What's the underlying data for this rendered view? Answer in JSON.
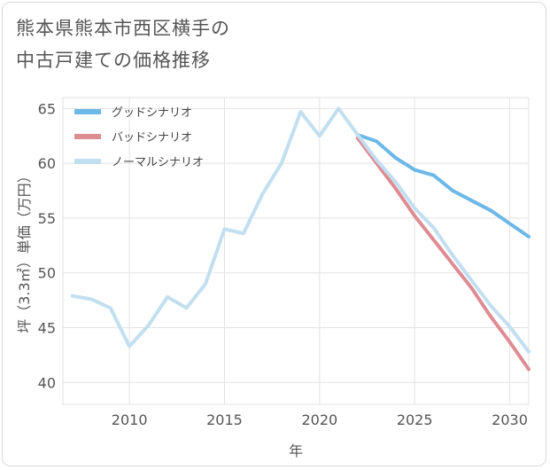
{
  "title": {
    "line1": "熊本県熊本市西区横手の",
    "line2": "中古戸建ての価格推移"
  },
  "chart_data": {
    "type": "line",
    "xlabel": "年",
    "ylabel": "坪（3.3㎡）単価（万円）",
    "xlim": [
      2006.5,
      2031
    ],
    "ylim": [
      38,
      66
    ],
    "xticks": [
      2010,
      2015,
      2020,
      2025,
      2030
    ],
    "yticks": [
      40,
      45,
      50,
      55,
      60,
      65
    ],
    "grid": true,
    "legend_position": "top-left",
    "series": [
      {
        "name": "グッドシナリオ",
        "color": "#6cb8e8",
        "x": [
          2022,
          2023,
          2024,
          2025,
          2026,
          2027,
          2028,
          2029,
          2030,
          2031
        ],
        "values": [
          62.6,
          62.0,
          60.5,
          59.4,
          58.9,
          57.5,
          56.6,
          55.7,
          54.5,
          53.3
        ]
      },
      {
        "name": "バッドシナリオ",
        "color": "#de8c93",
        "x": [
          2022,
          2023,
          2024,
          2025,
          2026,
          2027,
          2028,
          2029,
          2030,
          2031
        ],
        "values": [
          62.3,
          60.0,
          57.7,
          55.2,
          53.0,
          50.8,
          48.6,
          46.0,
          43.7,
          41.2
        ]
      },
      {
        "name": "ノーマルシナリオ",
        "color": "#c2dff0",
        "x": [
          2007,
          2008,
          2009,
          2010,
          2011,
          2012,
          2013,
          2014,
          2015,
          2016,
          2017,
          2018,
          2019,
          2020,
          2021,
          2022,
          2023,
          2024,
          2025,
          2026,
          2027,
          2028,
          2029,
          2030,
          2031
        ],
        "values": [
          47.9,
          47.6,
          46.8,
          43.3,
          45.2,
          47.8,
          46.8,
          49.0,
          54.0,
          53.6,
          57.2,
          60.0,
          64.7,
          62.5,
          65.0,
          62.6,
          60.3,
          58.3,
          55.9,
          54.1,
          51.6,
          49.3,
          47.0,
          45.1,
          42.8
        ]
      }
    ]
  }
}
